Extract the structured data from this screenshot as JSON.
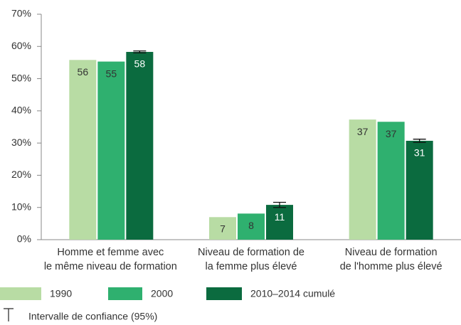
{
  "chart_data": {
    "type": "bar",
    "categories": [
      "Homme et femme avec\nle même niveau de formation",
      "Niveau de formation de\nla femme plus élevé",
      "Niveau de formation\nde l'homme plus élevé"
    ],
    "series": [
      {
        "name": "1990",
        "color": "#b8dca4",
        "values": [
          55.8,
          7.0,
          37.3
        ],
        "value_labels": [
          "56",
          "7",
          "37"
        ]
      },
      {
        "name": "2000",
        "color": "#2fb06f",
        "values": [
          55.3,
          8.1,
          36.6
        ],
        "value_labels": [
          "55",
          "8",
          "37"
        ]
      },
      {
        "name": "2010–2014 cumulé",
        "color": "#0b6b3f",
        "values": [
          58.3,
          10.8,
          30.7
        ],
        "value_labels": [
          "58",
          "11",
          "31"
        ],
        "errors": [
          0.3,
          0.8,
          0.5
        ]
      }
    ],
    "error_legend": "Intervalle de confiance (95%)",
    "ylim": [
      0,
      70
    ],
    "yticks": [
      {
        "value": 0,
        "label": "0%"
      },
      {
        "value": 10,
        "label": "10%"
      },
      {
        "value": 20,
        "label": "20%"
      },
      {
        "value": 30,
        "label": "30%"
      },
      {
        "value": 40,
        "label": "40%"
      },
      {
        "value": 50,
        "label": "50%"
      },
      {
        "value": 60,
        "label": "60%"
      },
      {
        "value": 70,
        "label": "70%"
      }
    ],
    "grid": false
  }
}
